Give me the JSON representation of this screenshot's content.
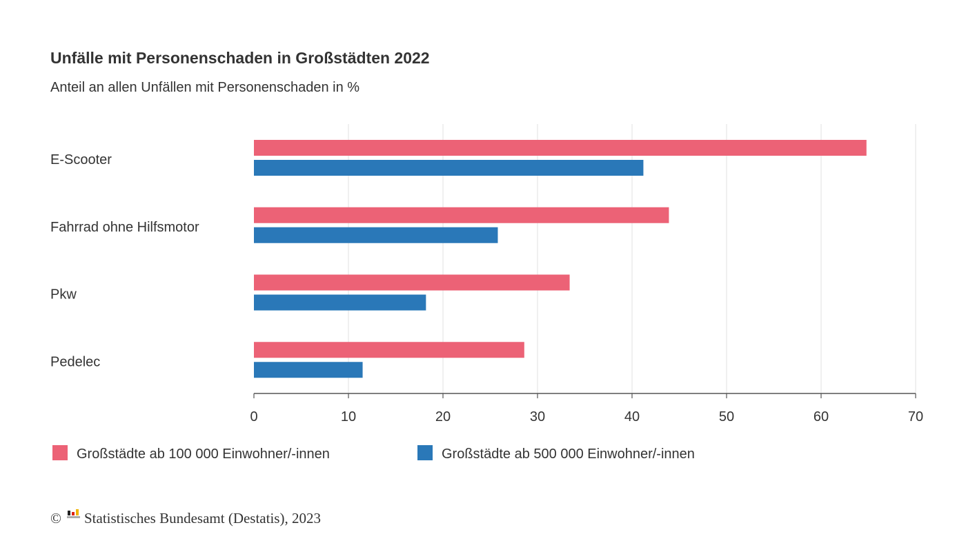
{
  "chart_data": {
    "type": "bar",
    "orientation": "horizontal",
    "title": "Unfälle mit Personenschaden in Großstädten 2022",
    "subtitle": "Anteil an allen Unfällen mit Personenschaden in %",
    "categories": [
      "E-Scooter",
      "Fahrrad ohne Hilfsmotor",
      "Pkw",
      "Pedelec"
    ],
    "series": [
      {
        "name": "Großstädte ab 100 000 Einwohner/-innen",
        "color": "#ec6276",
        "values": [
          64.8,
          43.9,
          33.4,
          28.6
        ]
      },
      {
        "name": "Großstädte ab 500 000 Einwohner/-innen",
        "color": "#2a78b8",
        "values": [
          41.2,
          25.8,
          18.2,
          11.5
        ]
      }
    ],
    "xlim": [
      0,
      70
    ],
    "xticks": [
      "0",
      "10",
      "20",
      "30",
      "40",
      "50",
      "60",
      "70"
    ],
    "grid": true,
    "legend_position": "bottom-left"
  },
  "source": "Statistisches Bundesamt (Destatis), 2023",
  "copyright_symbol": "©"
}
